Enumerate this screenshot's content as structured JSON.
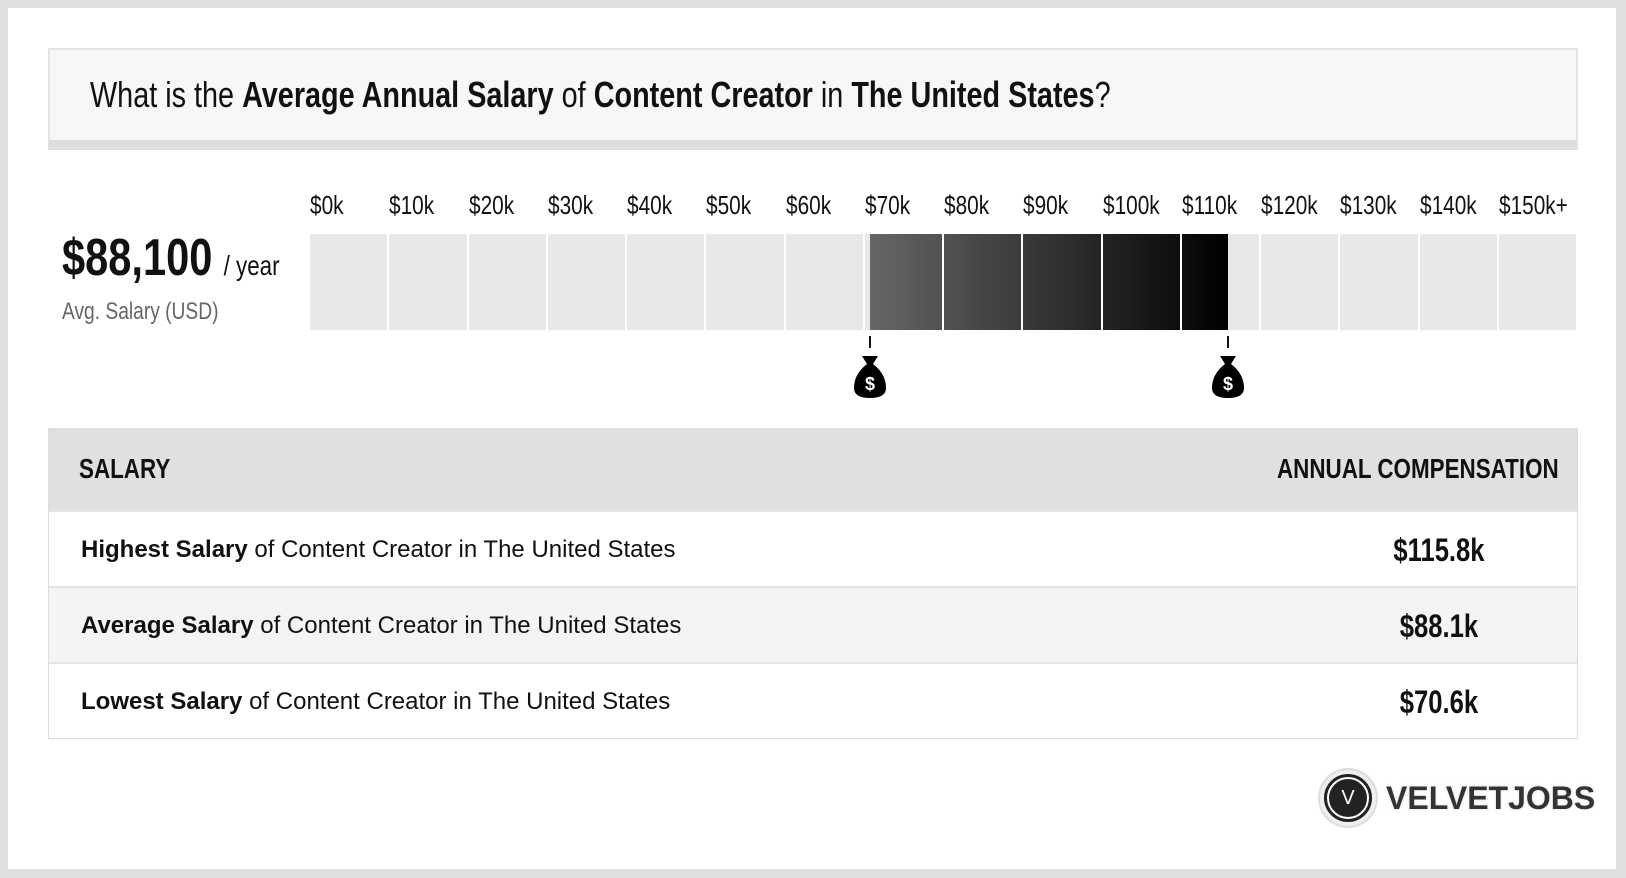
{
  "title": {
    "p1": "What is the ",
    "b1": "Average Annual Salary",
    "p2": " of ",
    "b2": "Content Creator",
    "p3": " in ",
    "b3": "The United States",
    "p4": "?"
  },
  "summary": {
    "value": "$88,100",
    "unit": "/ year",
    "label": "Avg. Salary (USD)"
  },
  "chart_data": {
    "type": "bar",
    "ticks": [
      "$0k",
      "$10k",
      "$20k",
      "$30k",
      "$40k",
      "$50k",
      "$60k",
      "$70k",
      "$80k",
      "$90k",
      "$100k",
      "$110k",
      "$120k",
      "$130k",
      "$140k",
      "$150k+"
    ],
    "range_low": 70.6,
    "range_high": 115.8,
    "average": 88.1,
    "unit": "k USD",
    "colors": {
      "empty": "#e8e8e8",
      "fill_start": "#666666",
      "fill_end": "#000000"
    },
    "markers": [
      {
        "value": 70.6,
        "icon": "money-bag-icon"
      },
      {
        "value": 115.8,
        "icon": "money-bag-icon"
      }
    ]
  },
  "table": {
    "headers": [
      "SALARY",
      "ANNUAL COMPENSATION"
    ],
    "rows": [
      {
        "bold": "Highest Salary",
        "rest": " of Content Creator in The United States",
        "value": "$115.8k"
      },
      {
        "bold": "Average Salary",
        "rest": " of Content Creator in The United States",
        "value": "$88.1k"
      },
      {
        "bold": "Lowest Salary",
        "rest": " of Content Creator in The United States",
        "value": "$70.6k"
      }
    ]
  },
  "logo": {
    "letter": "V",
    "word": "VELVETJOBS"
  }
}
